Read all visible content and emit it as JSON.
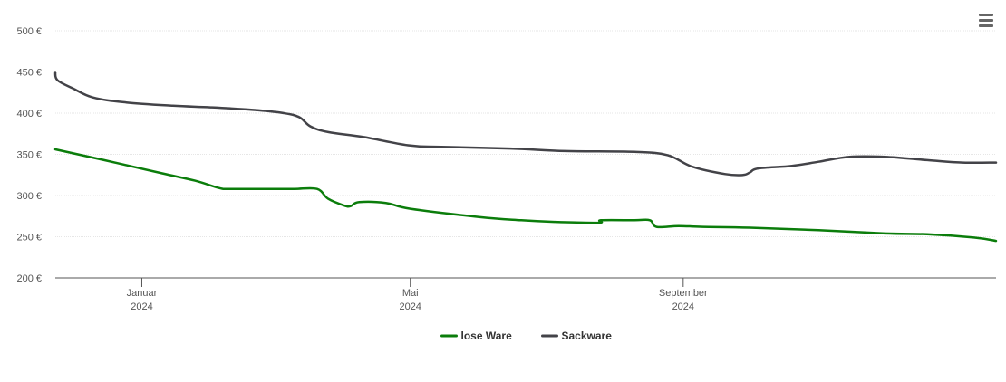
{
  "menu": {
    "icon": "hamburger-menu-icon"
  },
  "chart_data": {
    "type": "line",
    "title": "",
    "xlabel": "",
    "ylabel": "",
    "y_unit_suffix": " €",
    "ylim": [
      200,
      500
    ],
    "y_ticks": [
      200,
      250,
      300,
      350,
      400,
      450,
      500
    ],
    "y_tick_labels": [
      "200 €",
      "250 €",
      "300 €",
      "350 €",
      "400 €",
      "450 €",
      "500 €"
    ],
    "xlim": [
      "2023-11-23",
      "2025-01-20"
    ],
    "x_ticks": [
      {
        "date": "2024-01-01",
        "month": "Januar",
        "year": "2024"
      },
      {
        "date": "2024-05-01",
        "month": "Mai",
        "year": "2024"
      },
      {
        "date": "2024-09-01",
        "month": "September",
        "year": "2024"
      }
    ],
    "grid": true,
    "legend_position": "bottom-center",
    "series": [
      {
        "name": "lose Ware",
        "color": "#0b7d0b",
        "points": [
          [
            "2023-11-23",
            356
          ],
          [
            "2023-12-15",
            343
          ],
          [
            "2024-01-10",
            327
          ],
          [
            "2024-01-25",
            318
          ],
          [
            "2024-02-05",
            309
          ],
          [
            "2024-02-10",
            308
          ],
          [
            "2024-03-01",
            308
          ],
          [
            "2024-03-10",
            308
          ],
          [
            "2024-03-20",
            308
          ],
          [
            "2024-03-25",
            296
          ],
          [
            "2024-04-01",
            288
          ],
          [
            "2024-04-04",
            287
          ],
          [
            "2024-04-08",
            292
          ],
          [
            "2024-04-20",
            291
          ],
          [
            "2024-05-01",
            284
          ],
          [
            "2024-06-01",
            274
          ],
          [
            "2024-06-20",
            270
          ],
          [
            "2024-07-05",
            268
          ],
          [
            "2024-07-25",
            267
          ],
          [
            "2024-07-26",
            270
          ],
          [
            "2024-08-10",
            270
          ],
          [
            "2024-08-17",
            270
          ],
          [
            "2024-08-20",
            262
          ],
          [
            "2024-08-30",
            263
          ],
          [
            "2024-09-10",
            262
          ],
          [
            "2024-10-01",
            261
          ],
          [
            "2024-11-01",
            258
          ],
          [
            "2024-12-01",
            254
          ],
          [
            "2024-12-20",
            253
          ],
          [
            "2025-01-10",
            249
          ],
          [
            "2025-01-20",
            245
          ]
        ]
      },
      {
        "name": "Sackware",
        "color": "#434348",
        "points": [
          [
            "2023-11-23",
            450
          ],
          [
            "2023-11-24",
            440
          ],
          [
            "2023-12-01",
            430
          ],
          [
            "2023-12-10",
            419
          ],
          [
            "2023-12-25",
            413
          ],
          [
            "2024-01-15",
            409
          ],
          [
            "2024-02-01",
            407
          ],
          [
            "2024-02-20",
            404
          ],
          [
            "2024-03-05",
            400
          ],
          [
            "2024-03-12",
            395
          ],
          [
            "2024-03-17",
            384
          ],
          [
            "2024-03-25",
            377
          ],
          [
            "2024-04-10",
            371
          ],
          [
            "2024-04-30",
            361
          ],
          [
            "2024-05-15",
            359
          ],
          [
            "2024-06-15",
            357
          ],
          [
            "2024-07-10",
            354
          ],
          [
            "2024-08-10",
            353
          ],
          [
            "2024-08-25",
            349
          ],
          [
            "2024-09-05",
            335
          ],
          [
            "2024-09-20",
            326
          ],
          [
            "2024-09-28",
            325
          ],
          [
            "2024-10-01",
            328
          ],
          [
            "2024-10-05",
            333
          ],
          [
            "2024-10-20",
            336
          ],
          [
            "2024-11-01",
            341
          ],
          [
            "2024-11-15",
            347
          ],
          [
            "2024-12-01",
            347
          ],
          [
            "2024-12-20",
            343
          ],
          [
            "2025-01-05",
            340
          ],
          [
            "2025-01-20",
            340
          ]
        ]
      }
    ]
  }
}
